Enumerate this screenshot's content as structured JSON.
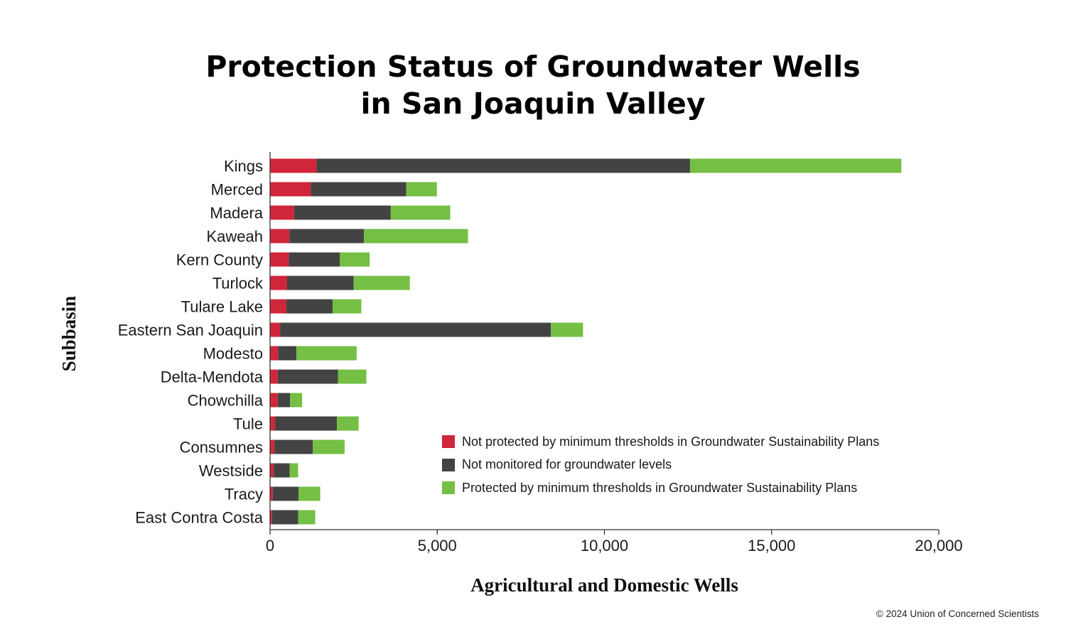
{
  "title_line1": "Protection Status of Groundwater Wells",
  "title_line2": "in San Joaquin Valley",
  "copyright": "© 2024 Union of Concerned Scientists",
  "colors": {
    "not_protected": "#d0263a",
    "not_monitored": "#434343",
    "protected": "#74bf44"
  },
  "legend": [
    {
      "label": "Not protected by minimum thresholds in Groundwater Sustainability Plans",
      "color": "#d0263a"
    },
    {
      "label": "Not monitored for groundwater levels",
      "color": "#434343"
    },
    {
      "label": "Protected by minimum thresholds in Groundwater Sustainability Plans",
      "color": "#74bf44"
    }
  ],
  "chart_data": {
    "type": "bar",
    "orientation": "horizontal",
    "stacked": true,
    "xlabel": "Agricultural and Domestic Wells",
    "ylabel": "Subbasin",
    "xlim": [
      0,
      20000
    ],
    "xticks": [
      0,
      5000,
      10000,
      15000,
      20000
    ],
    "xtick_labels": [
      "0",
      "5,000",
      "10,000",
      "15,000",
      "20,000"
    ],
    "grid": false,
    "legend_position": "lower-right",
    "categories": [
      "Kings",
      "Merced",
      "Madera",
      "Kaweah",
      "Kern County",
      "Turlock",
      "Tulare Lake",
      "Eastern San Joaquin",
      "Modesto",
      "Delta-Mendota",
      "Chowchilla",
      "Tule",
      "Consumnes",
      "Westside",
      "Tracy",
      "East Contra Costa"
    ],
    "series": [
      {
        "name": "Not protected by minimum thresholds in Groundwater Sustainability Plans",
        "values": [
          1390,
          1220,
          720,
          580,
          560,
          510,
          490,
          300,
          240,
          230,
          230,
          150,
          130,
          110,
          80,
          60
        ]
      },
      {
        "name": "Not monitored for groundwater levels",
        "values": [
          11170,
          2850,
          2890,
          2230,
          1530,
          1990,
          1380,
          8100,
          550,
          1800,
          370,
          1850,
          1150,
          480,
          770,
          780
        ]
      },
      {
        "name": "Protected by minimum thresholds in Groundwater Sustainability Plans",
        "values": [
          6320,
          920,
          1780,
          3110,
          890,
          1680,
          860,
          960,
          1800,
          850,
          360,
          650,
          950,
          250,
          650,
          510
        ]
      }
    ]
  }
}
